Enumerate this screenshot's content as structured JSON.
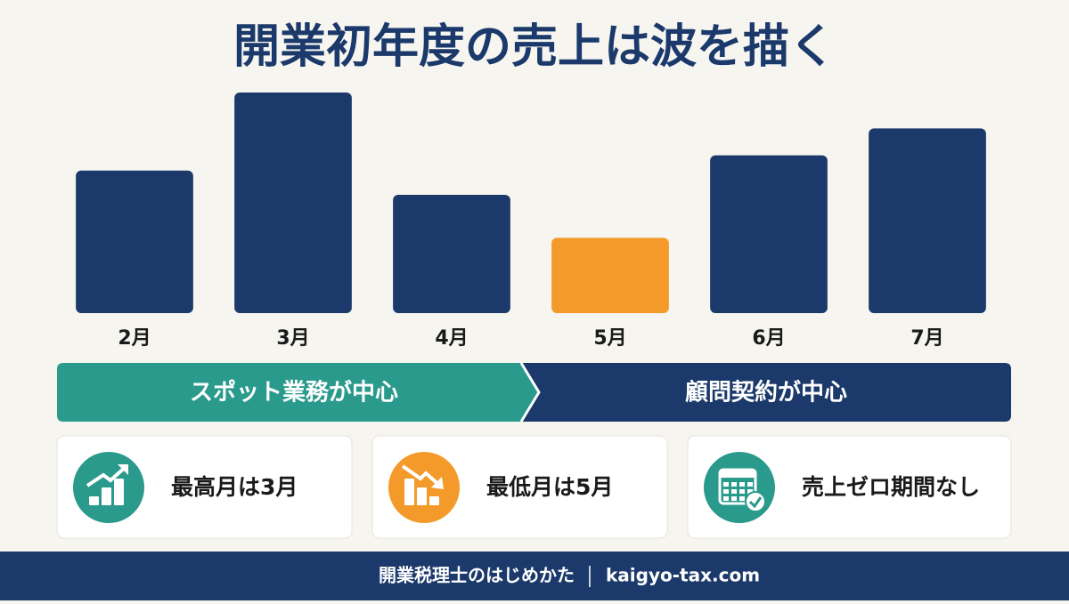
{
  "chart_data": {
    "type": "bar",
    "title": "開業初年度の売上は波を描く",
    "categories": [
      "2月",
      "3月",
      "4月",
      "5月",
      "6月",
      "7月"
    ],
    "values": [
      159,
      246,
      132,
      84,
      176,
      206
    ],
    "colors": [
      "#1b3a6b",
      "#1b3a6b",
      "#1b3a6b",
      "#f39a2b",
      "#1b3a6b",
      "#1b3a6b"
    ],
    "ylim": [
      0,
      250
    ]
  },
  "phases": [
    {
      "label": "スポット業務が中心",
      "color": "#2a9a8d"
    },
    {
      "label": "顧問契約が中心",
      "color": "#1b3a6b"
    }
  ],
  "highlights": [
    {
      "label": "最高月は3月",
      "color": "#2a9a8d"
    },
    {
      "label": "最低月は5月",
      "color": "#f39a2b"
    },
    {
      "label": "売上ゼロ期間なし",
      "color": "#2a9a8d"
    }
  ],
  "footer": {
    "site_name": "開業税理士のはじめかた",
    "url": "kaigyo-tax.com"
  }
}
